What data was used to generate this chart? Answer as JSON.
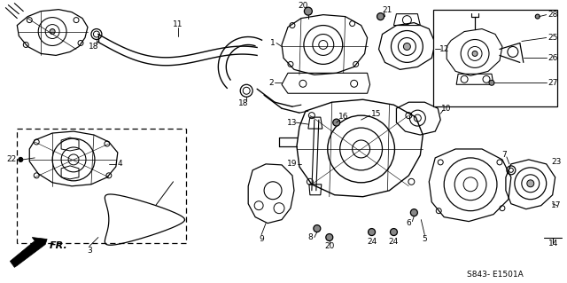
{
  "background_color": "#ffffff",
  "diagram_code": "S843- E1501A",
  "direction_label": "FR.",
  "figsize": [
    6.4,
    3.19
  ],
  "dpi": 100
}
